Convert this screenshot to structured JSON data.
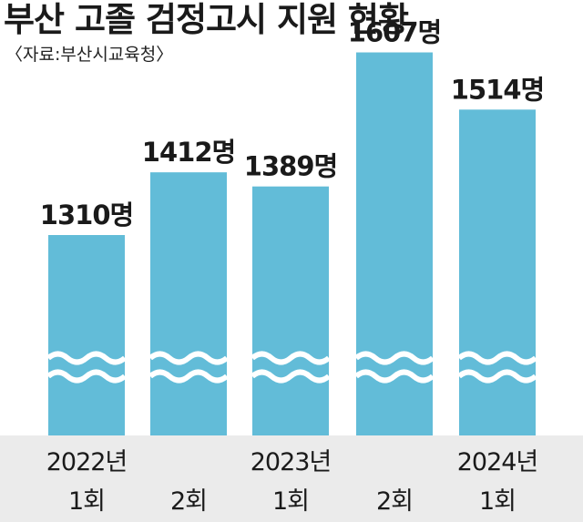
{
  "title": "부산 고졸 검정고시 지원 현황",
  "source": "〈자료:부산시교육청〉",
  "chart_data": {
    "type": "bar",
    "title": "부산 고졸 검정고시 지원 현황",
    "unit": "명",
    "categories": [
      "2022년 1회",
      "2회",
      "2023년 1회",
      "2회",
      "2024년 1회"
    ],
    "category_lines": [
      [
        "2022년",
        "1회"
      ],
      [
        "",
        "2회"
      ],
      [
        "2023년",
        "1회"
      ],
      [
        "",
        "2회"
      ],
      [
        "2024년",
        "1회"
      ]
    ],
    "values": [
      1310,
      1412,
      1389,
      1607,
      1514
    ],
    "value_labels": [
      "1310명",
      "1412명",
      "1389명",
      "1607명",
      "1514명"
    ],
    "axis_break": true,
    "bar_color": "#62bcd8",
    "axis_band_color": "#ebebeb",
    "grid": false,
    "legend": "none"
  }
}
